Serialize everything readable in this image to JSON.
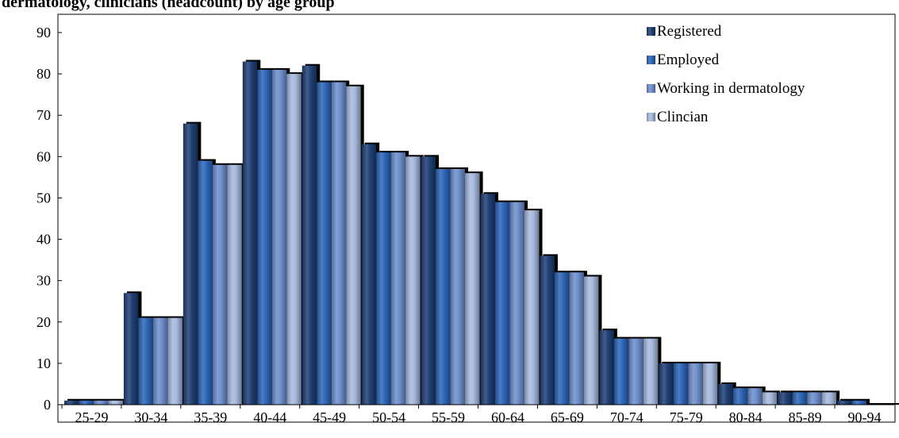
{
  "chart_data": {
    "type": "bar",
    "title": "dermatology, clinicians (headcount) by age group",
    "xlabel": "",
    "ylabel": "",
    "ylim": [
      0,
      90
    ],
    "yticks": [
      0,
      10,
      20,
      30,
      40,
      50,
      60,
      70,
      80,
      90
    ],
    "grid": false,
    "legend_position": "top-right",
    "categories": [
      "25-29",
      "30-34",
      "35-39",
      "40-44",
      "45-49",
      "50-54",
      "55-59",
      "60-64",
      "65-69",
      "70-74",
      "75-79",
      "80-84",
      "85-89",
      "90-94"
    ],
    "series": [
      {
        "name": "Registered",
        "color": "#1f3f74",
        "values": [
          1,
          27,
          68,
          83,
          82,
          63,
          60,
          51,
          36,
          18,
          10,
          5,
          3,
          1
        ]
      },
      {
        "name": "Employed",
        "color": "#2e66b8",
        "values": [
          1,
          21,
          59,
          81,
          78,
          61,
          57,
          49,
          32,
          16,
          10,
          4,
          3,
          1
        ]
      },
      {
        "name": "Working in dermatology",
        "color": "#6d8fcc",
        "values": [
          1,
          21,
          58,
          81,
          78,
          61,
          57,
          49,
          32,
          16,
          10,
          4,
          3,
          0
        ]
      },
      {
        "name": "Clincian",
        "color": "#a7b9de",
        "values": [
          1,
          21,
          58,
          80,
          77,
          60,
          56,
          47,
          31,
          16,
          10,
          3,
          3,
          0
        ]
      }
    ]
  }
}
